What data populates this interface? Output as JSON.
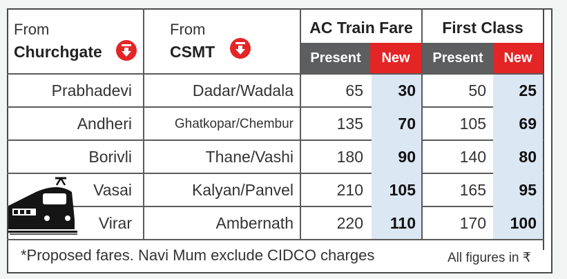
{
  "header": {
    "col1_from": "From",
    "col1_station": "Churchgate",
    "col2_from": "From",
    "col2_station": "CSMT",
    "group1": "AC Train Fare",
    "group2": "First Class",
    "present_label": "Present",
    "new_label": "New"
  },
  "rows": [
    {
      "from_churchgate": "Prabhadevi",
      "from_csmt": "Dadar/Wadala",
      "ac_present": "65",
      "ac_new": "30",
      "fc_present": "50",
      "fc_new": "25"
    },
    {
      "from_churchgate": "Andheri",
      "from_csmt": "Ghatkopar/Chembur",
      "ac_present": "135",
      "ac_new": "70",
      "fc_present": "105",
      "fc_new": "69"
    },
    {
      "from_churchgate": "Borivli",
      "from_csmt": "Thane/Vashi",
      "ac_present": "180",
      "ac_new": "90",
      "fc_present": "140",
      "fc_new": "80"
    },
    {
      "from_churchgate": "Vasai",
      "from_csmt": "Kalyan/Panvel",
      "ac_present": "210",
      "ac_new": "105",
      "fc_present": "165",
      "fc_new": "95"
    },
    {
      "from_churchgate": "Virar",
      "from_csmt": "Ambernath",
      "ac_present": "220",
      "ac_new": "110",
      "fc_present": "170",
      "fc_new": "100"
    }
  ],
  "footnote": "*Proposed fares. Navi Mum exclude CIDCO charges",
  "units_note": "All figures in ₹",
  "colors": {
    "accent_red": "#e32526",
    "header_gray": "#5c5e60",
    "new_cell_blue": "#dce7f4"
  },
  "icons": [
    "down-arrow-circle-icon",
    "train-icon"
  ]
}
